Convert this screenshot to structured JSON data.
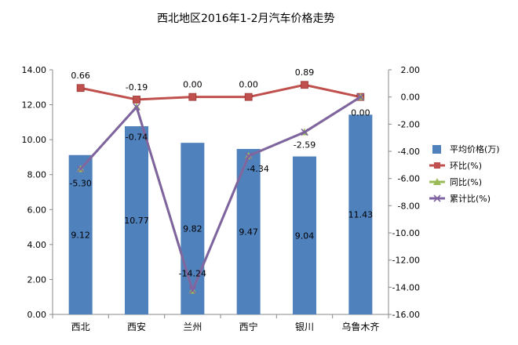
{
  "chart_data": {
    "type": "bar",
    "title": "西北地区2016年1-2月汽车价格走势",
    "categories": [
      "西北",
      "西安",
      "兰州",
      "西宁",
      "银川",
      "乌鲁木齐"
    ],
    "y_left": {
      "lim": [
        0,
        14
      ],
      "step": 2,
      "ticks": [
        "0.00",
        "2.00",
        "4.00",
        "6.00",
        "8.00",
        "10.00",
        "12.00",
        "14.00"
      ]
    },
    "y_right": {
      "lim": [
        -16,
        2
      ],
      "step": 2,
      "ticks": [
        "-16.00",
        "-14.00",
        "-12.00",
        "-10.00",
        "-8.00",
        "-6.00",
        "-4.00",
        "-2.00",
        "0.00",
        "2.00"
      ]
    },
    "series": [
      {
        "name": "平均价格(万)",
        "kind": "bar",
        "axis": "left",
        "color": "#4f81bd",
        "values": [
          9.12,
          10.77,
          9.82,
          9.47,
          9.04,
          11.43
        ],
        "labels": [
          "9.12",
          "10.77",
          "9.82",
          "9.47",
          "9.04",
          "11.43"
        ]
      },
      {
        "name": "环比(%)",
        "kind": "line",
        "axis": "right",
        "color": "#c0504d",
        "marker": "square",
        "values": [
          0.66,
          -0.19,
          0.0,
          0.0,
          0.89,
          0.0
        ],
        "labels": [
          "0.66",
          "-0.19",
          "0.00",
          "0.00",
          "0.89",
          "0.00"
        ]
      },
      {
        "name": "同比(%)",
        "kind": "line",
        "axis": "right",
        "color": "#9bbb59",
        "marker": "triangle",
        "values": [
          -5.3,
          -0.74,
          -14.24,
          -4.34,
          -2.59,
          0.0
        ],
        "labels": []
      },
      {
        "name": "累计比(%)",
        "kind": "line",
        "axis": "right",
        "color": "#8064a2",
        "marker": "x",
        "values": [
          -5.3,
          -0.74,
          -14.24,
          -4.34,
          -2.59,
          0.0
        ],
        "labels": [
          "-5.30",
          "-0.74",
          "-14.24",
          "-4.34",
          "-2.59",
          ""
        ]
      }
    ],
    "grid": false,
    "legend": "right"
  }
}
